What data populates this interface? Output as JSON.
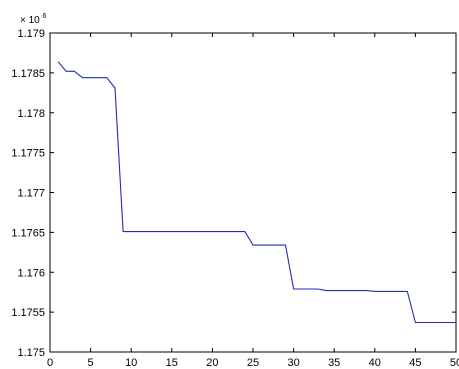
{
  "chart_data": {
    "type": "line",
    "title": "",
    "xlabel": "",
    "ylabel": "",
    "y_multiplier": {
      "base": "× 10",
      "exponent": "6"
    },
    "xlim": [
      0,
      50
    ],
    "ylim": [
      1.175,
      1.179
    ],
    "grid": false,
    "legend": "none",
    "x_ticks": [
      0,
      5,
      10,
      15,
      20,
      25,
      30,
      35,
      40,
      45,
      50
    ],
    "x_tick_labels": [
      "0",
      "5",
      "10",
      "15",
      "20",
      "25",
      "30",
      "35",
      "40",
      "45",
      "50"
    ],
    "y_ticks": [
      1.175,
      1.1755,
      1.176,
      1.1765,
      1.177,
      1.1775,
      1.178,
      1.1785,
      1.179
    ],
    "y_tick_labels": [
      "1.175",
      "1.1755",
      "1.176",
      "1.1765",
      "1.177",
      "1.1775",
      "1.178",
      "1.1785",
      "1.179"
    ],
    "series": [
      {
        "color": "#1f2fb0",
        "x": [
          1,
          2,
          3,
          4,
          5,
          6,
          7,
          8,
          9,
          10,
          11,
          12,
          13,
          14,
          15,
          16,
          17,
          18,
          19,
          20,
          21,
          22,
          23,
          24,
          25,
          26,
          27,
          28,
          29,
          30,
          31,
          32,
          33,
          34,
          35,
          36,
          37,
          38,
          39,
          40,
          41,
          42,
          43,
          44,
          45,
          46,
          47,
          48,
          49,
          50
        ],
        "y": [
          1.17864,
          1.17852,
          1.17852,
          1.17844,
          1.17844,
          1.17844,
          1.17844,
          1.17831,
          1.17651,
          1.17651,
          1.17651,
          1.17651,
          1.17651,
          1.17651,
          1.17651,
          1.17651,
          1.17651,
          1.17651,
          1.17651,
          1.17651,
          1.17651,
          1.17651,
          1.17651,
          1.17651,
          1.17634,
          1.17634,
          1.17634,
          1.17634,
          1.17634,
          1.17579,
          1.17579,
          1.17579,
          1.17579,
          1.17577,
          1.17577,
          1.17577,
          1.17577,
          1.17577,
          1.17577,
          1.17576,
          1.17576,
          1.17576,
          1.17576,
          1.17576,
          1.17537,
          1.17537,
          1.17537,
          1.17537,
          1.17537,
          1.17537
        ]
      }
    ]
  }
}
